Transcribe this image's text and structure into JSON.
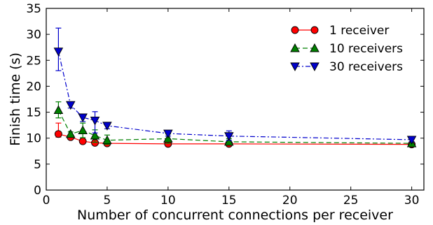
{
  "chart_data": {
    "type": "line",
    "title": "",
    "xlabel": "Number of concurrent connections per receiver",
    "ylabel": "Finish time (s)",
    "xlim": [
      0,
      31
    ],
    "ylim": [
      0,
      35
    ],
    "xticks": [
      0,
      5,
      10,
      15,
      20,
      25,
      30
    ],
    "yticks": [
      0,
      5,
      10,
      15,
      20,
      25,
      30,
      35
    ],
    "grid": false,
    "legend_position": "top-right",
    "x": [
      1,
      2,
      3,
      4,
      5,
      10,
      15,
      30
    ],
    "series": [
      {
        "name": "1 receiver",
        "color": "#ff0000",
        "marker": "circle",
        "line_style": "solid",
        "values": [
          10.8,
          10.2,
          9.4,
          9.1,
          9.0,
          8.9,
          8.9,
          8.8
        ],
        "error_low": [
          10.2,
          9.8,
          9.1,
          8.9,
          8.8,
          8.7,
          8.7,
          8.6
        ],
        "error_high": [
          12.9,
          10.6,
          9.7,
          9.4,
          9.3,
          9.1,
          9.1,
          9.0
        ]
      },
      {
        "name": "10 receivers",
        "color": "#008000",
        "marker": "triangle-up",
        "line_style": "dashed",
        "values": [
          15.4,
          10.8,
          11.5,
          10.5,
          9.6,
          9.9,
          9.3,
          9.0
        ],
        "error_low": [
          13.9,
          10.3,
          10.1,
          9.2,
          8.8,
          9.0,
          8.8,
          8.7
        ],
        "error_high": [
          17.0,
          11.2,
          12.9,
          11.6,
          10.6,
          10.8,
          9.9,
          9.3
        ]
      },
      {
        "name": "30 receivers",
        "color": "#0000cc",
        "marker": "triangle-down",
        "line_style": "dashdot",
        "values": [
          26.7,
          16.4,
          14.0,
          13.4,
          12.4,
          10.9,
          10.4,
          9.7
        ],
        "error_low": [
          23.0,
          15.8,
          13.2,
          11.0,
          11.8,
          10.4,
          9.6,
          9.3
        ],
        "error_high": [
          31.2,
          17.0,
          14.6,
          15.1,
          13.0,
          11.4,
          11.4,
          10.1
        ]
      }
    ]
  }
}
